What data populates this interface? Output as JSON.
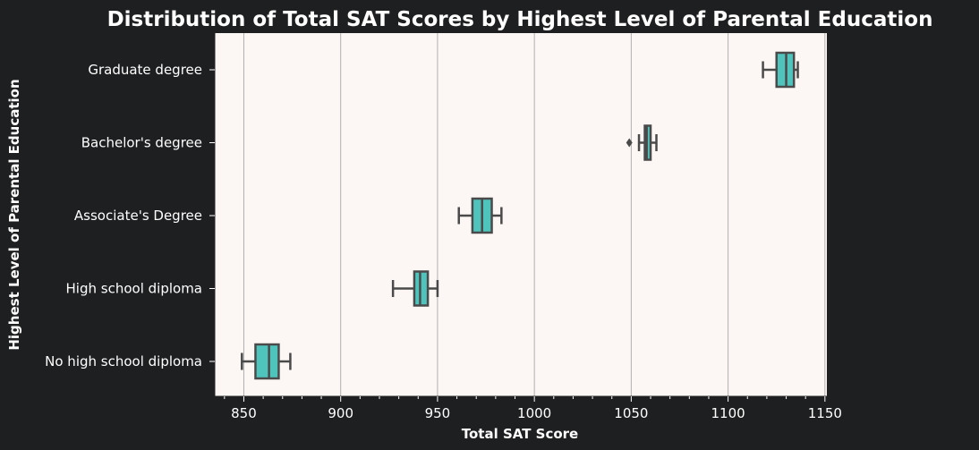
{
  "chart_data": {
    "type": "boxplot",
    "orientation": "horizontal",
    "title": "Distribution of Total SAT Scores by Highest Level of Parental Education",
    "xlabel": "Total SAT Score",
    "ylabel": "Highest Level of Parental Education",
    "xlim": [
      835,
      1151
    ],
    "xticks": [
      850,
      900,
      950,
      1000,
      1050,
      1100,
      1150
    ],
    "grid": "vertical",
    "categories": [
      "Graduate degree",
      "Bachelor's degree",
      "Associate's Degree",
      "High school diploma",
      "No high school diploma"
    ],
    "boxes": [
      {
        "category": "Graduate degree",
        "whisker_low": 1118,
        "q1": 1125,
        "median": 1130,
        "q3": 1134,
        "whisker_high": 1136,
        "outliers": []
      },
      {
        "category": "Bachelor's degree",
        "whisker_low": 1054,
        "q1": 1057,
        "median": 1058,
        "q3": 1060,
        "whisker_high": 1063,
        "outliers": [
          1049
        ]
      },
      {
        "category": "Associate's Degree",
        "whisker_low": 961,
        "q1": 968,
        "median": 973,
        "q3": 978,
        "whisker_high": 983,
        "outliers": []
      },
      {
        "category": "High school diploma",
        "whisker_low": 927,
        "q1": 938,
        "median": 941,
        "q3": 945,
        "whisker_high": 950,
        "outliers": []
      },
      {
        "category": "No high school diploma",
        "whisker_low": 849,
        "q1": 856,
        "median": 863,
        "q3": 868,
        "whisker_high": 874,
        "outliers": []
      }
    ],
    "colors": {
      "box_fill": "#4fc4bd",
      "line": "#4a4a4a",
      "plot_background": "#fcf7f4",
      "page_background": "#1e1f21",
      "grid": "#b0b0b0",
      "text": "#ffffff"
    }
  }
}
